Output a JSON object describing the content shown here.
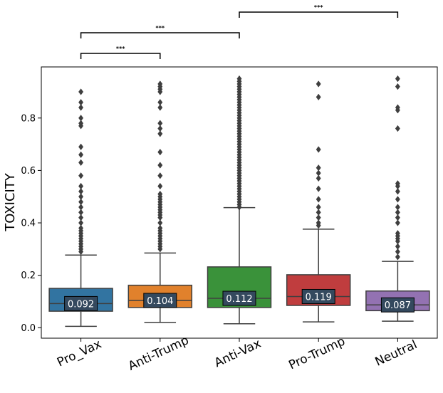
{
  "chart_data": {
    "type": "box",
    "ylabel": "TOXICITY",
    "xlabel": "",
    "ylim": [
      -0.04,
      0.995
    ],
    "yticks": [
      0.0,
      0.2,
      0.4,
      0.6,
      0.8
    ],
    "ytick_labels": [
      "0.0",
      "0.2",
      "0.4",
      "0.6",
      "0.8"
    ],
    "categories": [
      "Pro_Vax",
      "Anti-Trump",
      "Anti-Vax",
      "Pro-Trump",
      "Neutral"
    ],
    "boxes": [
      {
        "name": "Pro_Vax",
        "color": "#3274a1",
        "min": 0.005,
        "q1": 0.063,
        "median": 0.092,
        "q3": 0.15,
        "max": 0.277,
        "median_label": "0.092",
        "outliers": [
          0.29,
          0.3,
          0.31,
          0.32,
          0.33,
          0.34,
          0.35,
          0.36,
          0.37,
          0.38,
          0.4,
          0.42,
          0.44,
          0.46,
          0.48,
          0.5,
          0.52,
          0.54,
          0.58,
          0.63,
          0.66,
          0.69,
          0.77,
          0.78,
          0.8,
          0.84,
          0.86,
          0.9
        ]
      },
      {
        "name": "Anti-Trump",
        "color": "#e1812c",
        "min": 0.02,
        "q1": 0.077,
        "median": 0.104,
        "q3": 0.162,
        "max": 0.285,
        "median_label": "0.104",
        "outliers": [
          0.3,
          0.31,
          0.32,
          0.33,
          0.34,
          0.35,
          0.36,
          0.37,
          0.38,
          0.4,
          0.42,
          0.43,
          0.44,
          0.45,
          0.46,
          0.47,
          0.48,
          0.49,
          0.5,
          0.51,
          0.54,
          0.58,
          0.62,
          0.67,
          0.74,
          0.76,
          0.78,
          0.84,
          0.86,
          0.9,
          0.91,
          0.92,
          0.93
        ]
      },
      {
        "name": "Anti-Vax",
        "color": "#3a923a",
        "min": 0.015,
        "q1": 0.077,
        "median": 0.112,
        "q3": 0.232,
        "max": 0.458,
        "median_label": "0.112",
        "outliers": [
          0.46,
          0.47,
          0.48,
          0.49,
          0.5,
          0.51,
          0.52,
          0.53,
          0.54,
          0.55,
          0.56,
          0.57,
          0.58,
          0.59,
          0.6,
          0.61,
          0.62,
          0.63,
          0.64,
          0.65,
          0.66,
          0.67,
          0.68,
          0.69,
          0.7,
          0.71,
          0.72,
          0.73,
          0.74,
          0.75,
          0.76,
          0.77,
          0.78,
          0.79,
          0.8,
          0.81,
          0.82,
          0.83,
          0.84,
          0.85,
          0.86,
          0.87,
          0.88,
          0.89,
          0.9,
          0.91,
          0.92,
          0.93,
          0.94,
          0.95
        ]
      },
      {
        "name": "Pro-Trump",
        "color": "#c03d3e",
        "min": 0.022,
        "q1": 0.085,
        "median": 0.119,
        "q3": 0.202,
        "max": 0.376,
        "median_label": "0.119",
        "outliers": [
          0.39,
          0.4,
          0.42,
          0.44,
          0.46,
          0.49,
          0.53,
          0.57,
          0.59,
          0.61,
          0.68,
          0.88,
          0.93
        ]
      },
      {
        "name": "Neutral",
        "color": "#9372b2",
        "min": 0.025,
        "q1": 0.065,
        "median": 0.087,
        "q3": 0.14,
        "max": 0.253,
        "median_label": "0.087",
        "outliers": [
          0.27,
          0.29,
          0.31,
          0.33,
          0.34,
          0.35,
          0.36,
          0.4,
          0.42,
          0.44,
          0.46,
          0.49,
          0.52,
          0.54,
          0.55,
          0.76,
          0.83,
          0.84,
          0.92,
          0.95
        ]
      }
    ],
    "significance": [
      {
        "from": "Pro_Vax",
        "to": "Anti-Trump",
        "label": "***"
      },
      {
        "from": "Pro_Vax",
        "to": "Anti-Vax",
        "label": "***"
      },
      {
        "from": "Anti-Vax",
        "to": "Neutral",
        "label": "***"
      }
    ]
  }
}
